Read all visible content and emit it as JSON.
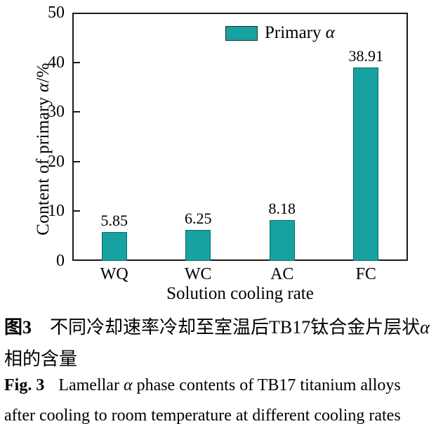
{
  "chart_data": {
    "type": "bar",
    "title": "",
    "categories": [
      "WQ",
      "WC",
      "AC",
      "FC"
    ],
    "values": [
      5.85,
      6.25,
      8.18,
      38.91
    ],
    "value_labels": [
      "5.85",
      "6.25",
      "8.18",
      "38.91"
    ],
    "series": [
      {
        "name": "Primary α",
        "values": [
          5.85,
          6.25,
          8.18,
          38.91
        ]
      }
    ],
    "xlabel": "Solution cooling rate",
    "ylabel": "Content of primary α/%",
    "ylim": [
      0,
      50
    ],
    "yticks": [
      0,
      10,
      20,
      30,
      40,
      50
    ],
    "grid": false,
    "legend": {
      "labels": [
        "Primary α"
      ],
      "position": "top-inside"
    },
    "bar_color": "#18A1A1",
    "bar_border_color": "#0A6C6C"
  },
  "labels": {
    "ylabel_pre": "Content of primary ",
    "alpha": "α",
    "ylabel_suffix": "/%",
    "legend_pre": "Primary ",
    "xlabel": "Solution cooling rate"
  },
  "caption_zh": {
    "fig_label": "图3",
    "line1": "不同冷却速率冷却至室温后TB17钛合金片层状",
    "alpha": "α",
    "line2": "相的含量"
  },
  "caption_en": {
    "fig_label": "Fig. 3",
    "line1_pre": "Lamellar ",
    "alpha": "α",
    "line1_post": " phase contents of TB17 titanium alloys",
    "line2": "after cooling to room temperature at different cooling rates"
  },
  "colors": {
    "bar": "#18A1A1",
    "bar_border": "#0A6C6C",
    "axis": "#1A1A1A",
    "text": "#000000"
  }
}
